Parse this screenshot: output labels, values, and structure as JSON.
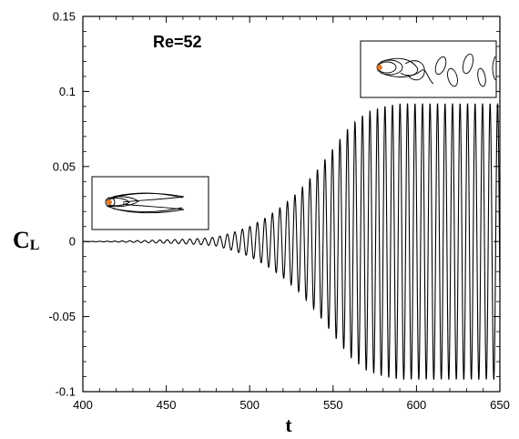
{
  "chart_data": {
    "type": "line",
    "title": "",
    "annotation": "Re=52",
    "xlabel": "t",
    "ylabel": "C",
    "ylabel_subscript": "L",
    "xlim": [
      400,
      650
    ],
    "ylim": [
      -0.1,
      0.15
    ],
    "xticks": [
      400,
      450,
      500,
      550,
      600,
      650
    ],
    "yticks": [
      -0.1,
      -0.05,
      0,
      0.05,
      0.1,
      0.15
    ],
    "xtick_labels": [
      "400",
      "450",
      "500",
      "550",
      "600",
      "650"
    ],
    "ytick_labels": [
      "-0.1",
      "-0.05",
      "0",
      "0.05",
      "0.1",
      "0.15"
    ],
    "grid": false,
    "line_color": "#000000",
    "series": [
      {
        "mean": 0,
        "period": 4.5,
        "amplitude_envelope": {
          "t": [
            400,
            420,
            440,
            460,
            470,
            480,
            490,
            500,
            510,
            520,
            530,
            540,
            550,
            560,
            570,
            580,
            590,
            600,
            620,
            650
          ],
          "amplitude": [
            0,
            0.0003,
            0.0008,
            0.0015,
            0.002,
            0.003,
            0.006,
            0.01,
            0.016,
            0.024,
            0.034,
            0.047,
            0.062,
            0.077,
            0.086,
            0.09,
            0.092,
            0.092,
            0.092,
            0.092
          ]
        }
      }
    ],
    "insets": [
      {
        "name": "steady-wake-inset",
        "at_t": 420,
        "description_icon": "symmetric-wake-contours"
      },
      {
        "name": "vortex-shedding-inset",
        "at_t": 620,
        "description_icon": "karman-vortex-street-contours"
      }
    ]
  }
}
